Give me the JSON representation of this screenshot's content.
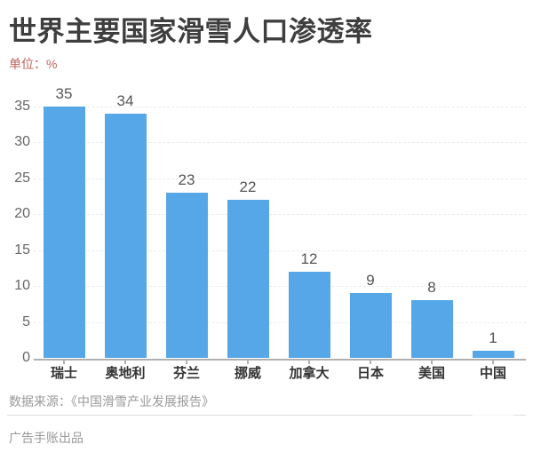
{
  "page": {
    "title": "世界主要国家滑雪人口渗透率",
    "unit_label": "单位：%"
  },
  "chart_data": {
    "type": "bar",
    "title": "世界主要国家滑雪人口渗透率",
    "ylabel": "单位：%",
    "xlabel": "",
    "categories": [
      "瑞士",
      "奥地利",
      "芬兰",
      "挪威",
      "加拿大",
      "日本",
      "美国",
      "中国"
    ],
    "values": [
      35,
      34,
      23,
      22,
      12,
      9,
      8,
      1
    ],
    "ylim": [
      0,
      35
    ],
    "yticks": [
      0,
      5,
      10,
      15,
      20,
      25,
      30,
      35
    ],
    "grid": "horizontal-dashed",
    "legend": "none",
    "value_labels": true,
    "bar_color": "#56a7e8"
  },
  "footer": {
    "source": "数据来源：《中国滑雪产业发展报告》",
    "credit": "广告手账出品"
  },
  "colors": {
    "bar": "#56a7e8",
    "title_text": "#3e3e3e",
    "unit_text": "#c0605a",
    "axis_text": "#666666",
    "category_text": "#333333",
    "value_text": "#555555",
    "muted_text": "#999999",
    "axis_line": "#b0b0b0",
    "grid_line": "#ebebeb",
    "divider": "#dddddd",
    "background": "#ffffff"
  }
}
